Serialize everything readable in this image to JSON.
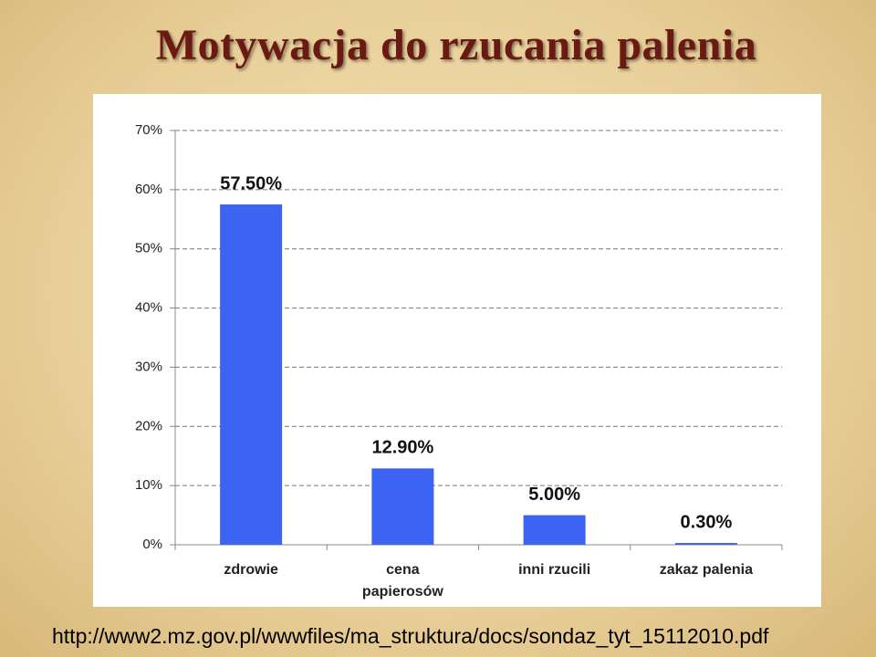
{
  "chart_data": {
    "type": "bar",
    "title": "Motywacja do rzucania palenia",
    "categories": [
      "zdrowie",
      "cena\npapierosów",
      "inni rzucili",
      "zakaz palenia"
    ],
    "values": [
      57.5,
      12.9,
      5.0,
      0.3
    ],
    "value_labels": [
      "57.50%",
      "12.90%",
      "5.00%",
      "0.30%"
    ],
    "color": "#3d63f2",
    "ylim": [
      0,
      70
    ],
    "yticks": [
      {
        "value": 0,
        "label": "0%"
      },
      {
        "value": 10,
        "label": "10%"
      },
      {
        "value": 20,
        "label": "20%"
      },
      {
        "value": 30,
        "label": "30%"
      },
      {
        "value": 40,
        "label": "40%"
      },
      {
        "value": 50,
        "label": "50%"
      },
      {
        "value": 60,
        "label": "60%"
      },
      {
        "value": 70,
        "label": "70%"
      }
    ],
    "grid": true,
    "source": "http://www2.mz.gov.pl/wwwfiles/ma_struktura/docs/sondaz_tyt_15112010.pdf"
  }
}
